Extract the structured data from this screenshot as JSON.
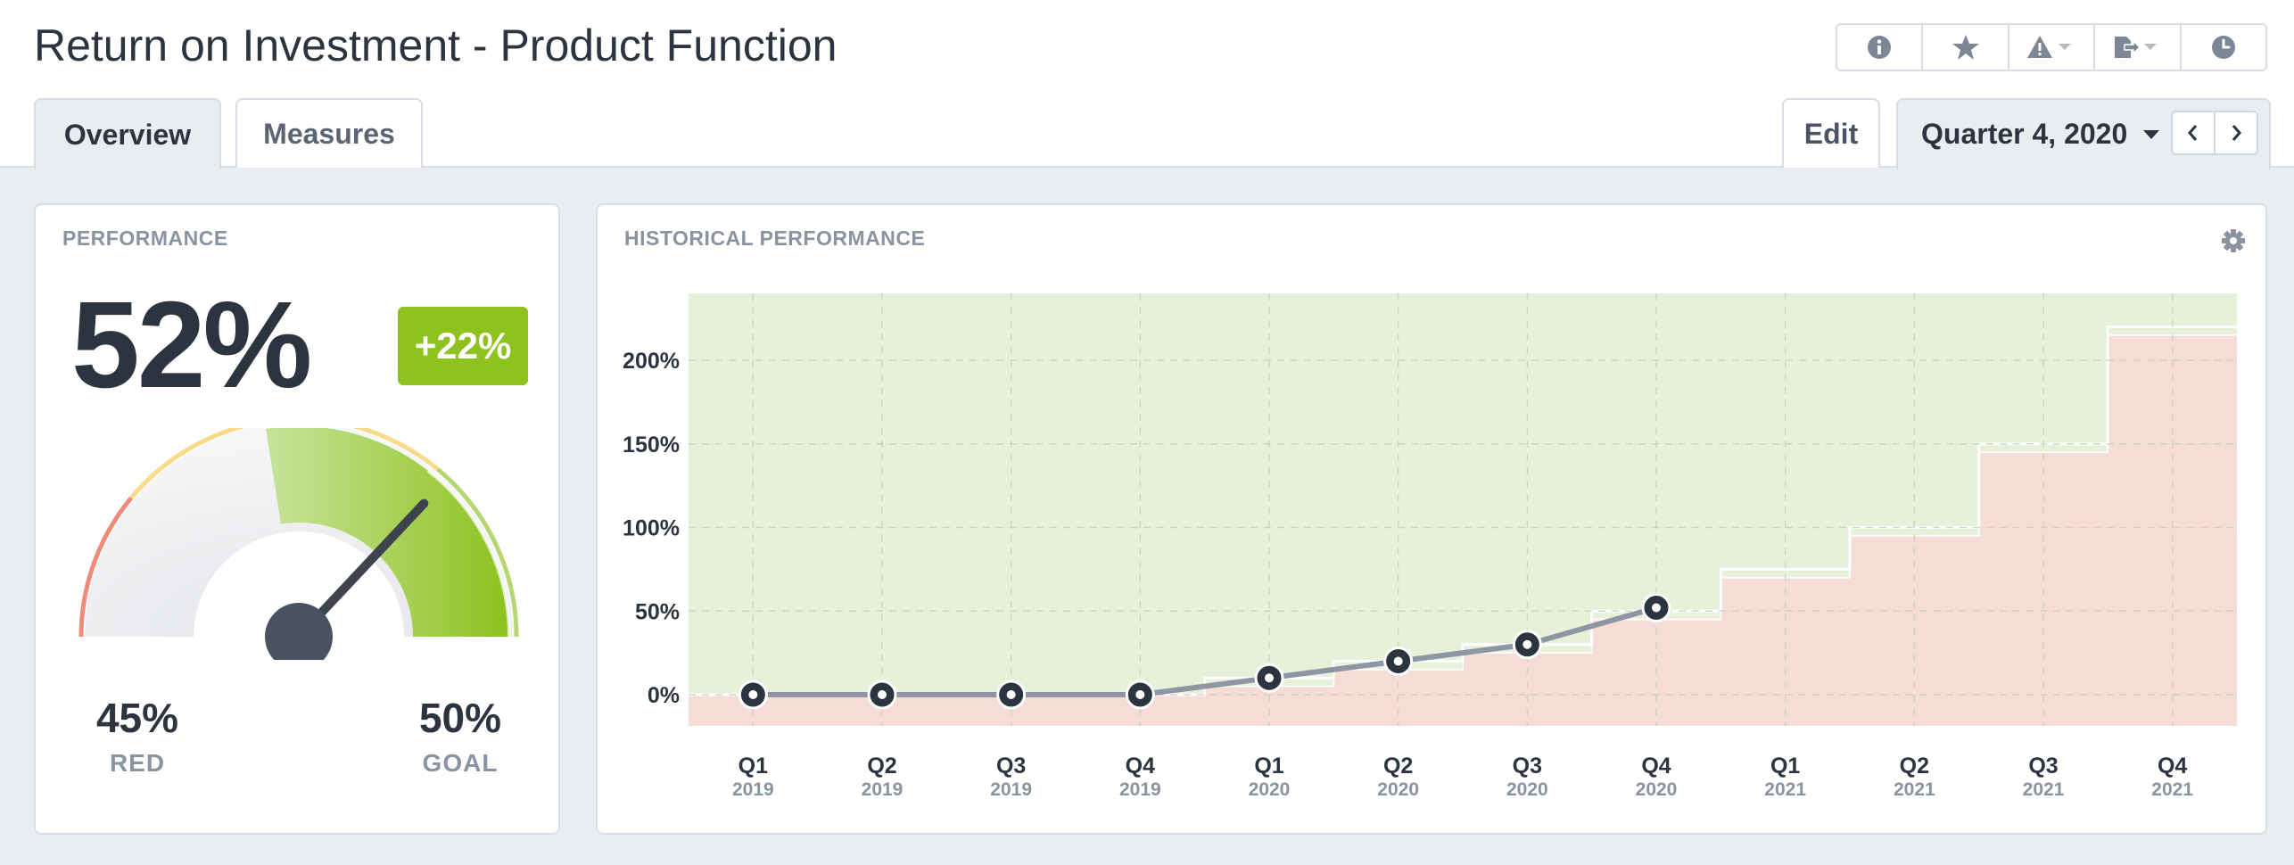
{
  "header": {
    "title": "Return on Investment - Product Function"
  },
  "toolbar": {
    "actions": [
      {
        "icon": "info-icon"
      },
      {
        "icon": "star-icon"
      },
      {
        "icon": "alert-dropdown-icon"
      },
      {
        "icon": "export-dropdown-icon"
      },
      {
        "icon": "history-clock-icon"
      }
    ]
  },
  "tabs": [
    {
      "label": "Overview",
      "active": true
    },
    {
      "label": "Measures",
      "active": false
    }
  ],
  "edit_label": "Edit",
  "period": {
    "label": "Quarter 4, 2020"
  },
  "performance": {
    "title": "PERFORMANCE",
    "value": "52%",
    "change": "+22%",
    "red_value": "45%",
    "red_label": "RED",
    "goal_value": "50%",
    "goal_label": "GOAL",
    "needle_value": 52,
    "colors": {
      "red": "#f08a7a",
      "yellow": "#f9d98a",
      "green": "#8dc21f"
    }
  },
  "historical": {
    "title": "HISTORICAL PERFORMANCE"
  },
  "chart_data": {
    "type": "line",
    "y_tick_labels": [
      "0%",
      "50%",
      "100%",
      "150%",
      "200%"
    ],
    "ylim": [
      -20,
      240
    ],
    "x": [
      {
        "q": "Q1",
        "y": "2019"
      },
      {
        "q": "Q2",
        "y": "2019"
      },
      {
        "q": "Q3",
        "y": "2019"
      },
      {
        "q": "Q4",
        "y": "2019"
      },
      {
        "q": "Q1",
        "y": "2020"
      },
      {
        "q": "Q2",
        "y": "2020"
      },
      {
        "q": "Q3",
        "y": "2020"
      },
      {
        "q": "Q4",
        "y": "2020"
      },
      {
        "q": "Q1",
        "y": "2021"
      },
      {
        "q": "Q2",
        "y": "2021"
      },
      {
        "q": "Q3",
        "y": "2021"
      },
      {
        "q": "Q4",
        "y": "2021"
      }
    ],
    "actual": [
      0,
      0,
      0,
      0,
      10,
      20,
      30,
      52
    ],
    "red_threshold": [
      0,
      0,
      0,
      0,
      5,
      15,
      25,
      45,
      70,
      95,
      145,
      215
    ],
    "goal_threshold": [
      0,
      0,
      0,
      0,
      10,
      20,
      30,
      50,
      75,
      100,
      150,
      220
    ],
    "colors": {
      "good_zone": "#e7f1da",
      "bad_zone": "#f5dcd7",
      "line": "#8f96a3",
      "marker": "#2c3440"
    }
  }
}
